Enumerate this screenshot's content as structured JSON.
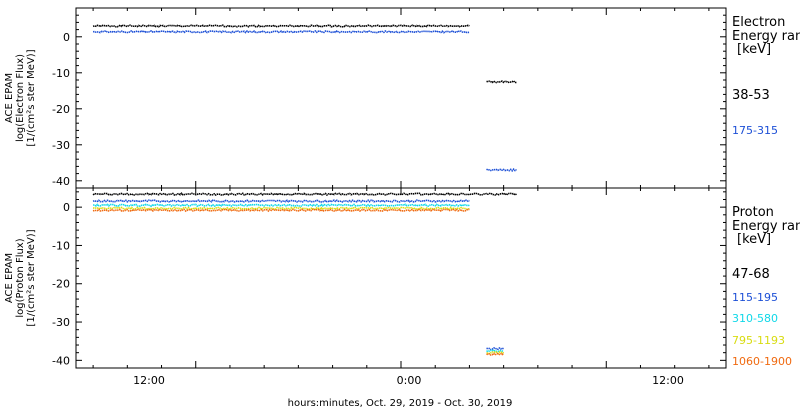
{
  "footer": {
    "xlabel": "hours:minutes, Oct. 29, 2019 - Oct. 30, 2019"
  },
  "x_ticks": [
    "12:00",
    "0:00",
    "12:00"
  ],
  "chart_data": [
    {
      "type": "scatter",
      "instrument": "ACE EPAM",
      "ylabel": [
        "ACE EPAM",
        "log(Electron Flux)",
        "[1/(cm²s ster MeV)]"
      ],
      "ylim": [
        -42,
        8
      ],
      "yticks": [
        0,
        -10,
        -20,
        -30,
        -40
      ],
      "xaxis": {
        "start": "Oct 29 2019 05:00",
        "end": "Oct 30 2019 19:00",
        "ticks": [
          "Oct 29 12:00",
          "Oct 30 00:00",
          "Oct 30 12:00"
        ]
      },
      "legend": {
        "title_lines": [
          "Electron",
          "Energy ran"
        ],
        "unit": "[keV]",
        "entries": [
          {
            "label": "38-53",
            "color": "#000000"
          },
          {
            "label": "175-315",
            "color": "#1c4fd6"
          }
        ]
      },
      "series": [
        {
          "name": "38-53",
          "color": "#000000",
          "segments": [
            {
              "start": "Oct 29 06:00",
              "end": "Oct 30 04:00",
              "value": 3.0
            },
            {
              "start": "Oct 30 05:00",
              "end": "Oct 30 06:45",
              "value": -12.5
            }
          ]
        },
        {
          "name": "175-315",
          "color": "#1c4fd6",
          "segments": [
            {
              "start": "Oct 29 06:00",
              "end": "Oct 30 04:00",
              "value": 1.4
            },
            {
              "start": "Oct 30 05:00",
              "end": "Oct 30 06:45",
              "value": -37.0
            }
          ]
        }
      ]
    },
    {
      "type": "scatter",
      "instrument": "ACE EPAM",
      "ylabel": [
        "ACE EPAM",
        "log(Proton Flux)",
        "[1/(cm²s ster MeV)]"
      ],
      "ylim": [
        -42,
        5
      ],
      "yticks": [
        0,
        -10,
        -20,
        -30,
        -40
      ],
      "xaxis": {
        "start": "Oct 29 2019 05:00",
        "end": "Oct 30 2019 19:00",
        "ticks": [
          "Oct 29 12:00",
          "Oct 30 00:00",
          "Oct 30 12:00"
        ]
      },
      "legend": {
        "title_lines": [
          "Proton",
          "Energy ran"
        ],
        "unit": "[keV]",
        "entries": [
          {
            "label": "47-68",
            "color": "#000000"
          },
          {
            "label": "115-195",
            "color": "#1c4fd6"
          },
          {
            "label": "310-580",
            "color": "#10d8e8"
          },
          {
            "label": "795-1193",
            "color": "#d8dc10"
          },
          {
            "label": "1060-1900",
            "color": "#f06a10"
          }
        ]
      },
      "series": [
        {
          "name": "47-68",
          "color": "#000000",
          "segments": [
            {
              "start": "Oct 29 06:00",
              "end": "Oct 30 06:45",
              "value": 3.4
            }
          ]
        },
        {
          "name": "115-195",
          "color": "#1c4fd6",
          "segments": [
            {
              "start": "Oct 29 06:00",
              "end": "Oct 30 04:00",
              "value": 1.6
            },
            {
              "start": "Oct 30 05:00",
              "end": "Oct 30 06:00",
              "value": -37.0
            }
          ]
        },
        {
          "name": "310-580",
          "color": "#10d8e8",
          "segments": [
            {
              "start": "Oct 29 06:00",
              "end": "Oct 30 04:00",
              "value": 0.5
            },
            {
              "start": "Oct 30 05:00",
              "end": "Oct 30 06:00",
              "value": -37.5
            }
          ]
        },
        {
          "name": "795-1193",
          "color": "#d8dc10",
          "segments": [
            {
              "start": "Oct 29 06:00",
              "end": "Oct 30 04:00",
              "value": -0.3
            },
            {
              "start": "Oct 30 05:00",
              "end": "Oct 30 06:00",
              "value": -38.0
            }
          ]
        },
        {
          "name": "1060-1900",
          "color": "#f06a10",
          "segments": [
            {
              "start": "Oct 29 06:00",
              "end": "Oct 30 04:00",
              "value": -0.8
            },
            {
              "start": "Oct 30 05:00",
              "end": "Oct 30 06:00",
              "value": -38.4
            }
          ]
        }
      ]
    }
  ]
}
